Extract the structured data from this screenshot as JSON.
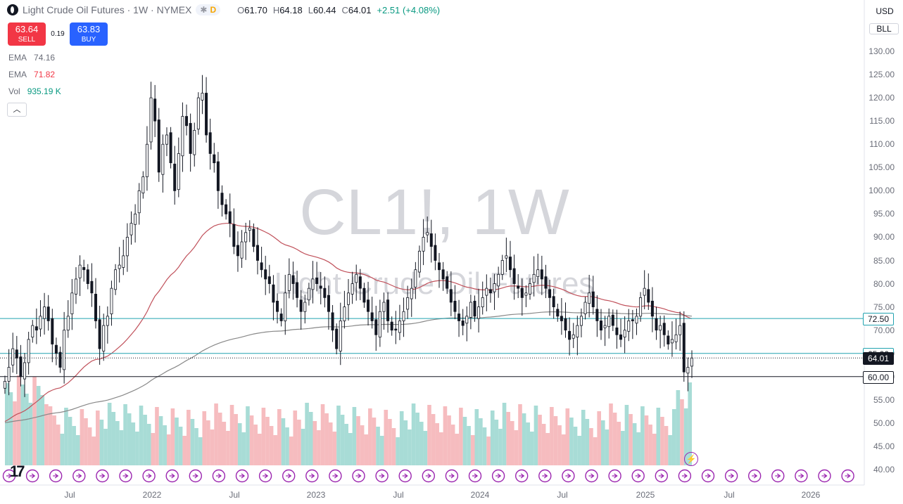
{
  "header": {
    "title": "Light Crude Oil Futures · 1W · NYMEX",
    "flag_d": "D",
    "ohlc": {
      "o_label": "O",
      "o": "61.70",
      "h_label": "H",
      "h": "64.18",
      "l_label": "L",
      "l": "60.44",
      "c_label": "C",
      "c": "64.01",
      "change": "+2.51 (+4.08%)"
    }
  },
  "trade": {
    "sell_price": "63.64",
    "sell_label": "SELL",
    "spread": "0.19",
    "buy_price": "63.83",
    "buy_label": "BUY"
  },
  "indicators": [
    {
      "name": "EMA",
      "value": "74.16",
      "color": "#6a6d78"
    },
    {
      "name": "EMA",
      "value": "71.82",
      "color": "#f23645"
    },
    {
      "name": "Vol",
      "value": "935.19 K",
      "color": "#089981"
    }
  ],
  "currency": "USD",
  "unit": "BLL",
  "watermark": {
    "symbol": "CL1!, 1W",
    "name": "Light Crude Oil Futures"
  },
  "colors": {
    "up": "#089981",
    "down": "#f23645",
    "hline": "#22a3b0",
    "ema_slow": "#888888",
    "ema_fast": "#c0505a",
    "vol_up": "#9fd8d2",
    "vol_down": "#f5b5b8",
    "event": "#9c27b0"
  },
  "chart_data": {
    "type": "candlestick",
    "interval": "1W",
    "x_axis_labels": [
      "Jul",
      "2022",
      "Jul",
      "2023",
      "Jul",
      "2024",
      "Jul",
      "2025",
      "Jul",
      "2026"
    ],
    "y_range": [
      40,
      130
    ],
    "y_ticks": [
      "130.00",
      "125.00",
      "120.00",
      "115.00",
      "110.00",
      "105.00",
      "100.00",
      "95.00",
      "90.00",
      "85.00",
      "80.00",
      "75.00",
      "70.00",
      "65.00",
      "60.00",
      "55.00",
      "50.00",
      "45.00",
      "40.00"
    ],
    "horizontal_lines": [
      72.5,
      65.0,
      60.0
    ],
    "price_tags": [
      {
        "label": "72.50",
        "value": 72.5,
        "bg": "#ffffff",
        "fg": "#131722",
        "border": "#22a3b0"
      },
      {
        "label": "65.00",
        "value": 65.0,
        "bg": "#ffffff",
        "fg": "#131722",
        "border": "#22a3b0"
      },
      {
        "label": "64.01",
        "value": 64.01,
        "bg": "#131722",
        "fg": "#ffffff",
        "border": "#131722"
      },
      {
        "label": "60.00",
        "value": 60.0,
        "bg": "#ffffff",
        "fg": "#131722",
        "border": "#131722"
      }
    ],
    "last_price": 64.01,
    "closes": [
      59,
      62,
      66,
      64,
      60,
      63,
      68,
      71,
      70,
      73,
      75,
      72,
      67,
      65,
      62,
      70,
      73,
      78,
      81,
      84,
      83,
      80,
      78,
      72,
      66,
      71,
      73,
      79,
      83,
      84,
      86,
      90,
      93,
      95,
      100,
      103,
      110,
      120,
      115,
      104,
      110,
      112,
      106,
      100,
      108,
      116,
      114,
      108,
      113,
      120,
      121,
      112,
      108,
      106,
      100,
      97,
      95,
      93,
      88,
      86,
      89,
      91,
      92,
      88,
      85,
      83,
      81,
      80,
      76,
      74,
      72,
      78,
      82,
      80,
      77,
      74,
      76,
      79,
      81,
      80,
      79,
      77,
      74,
      70,
      66,
      72,
      75,
      78,
      80,
      82,
      79,
      76,
      74,
      72,
      69,
      74,
      76,
      72,
      70,
      70,
      72,
      74,
      77,
      79,
      83,
      87,
      90,
      91,
      88,
      85,
      83,
      81,
      79,
      76,
      74,
      72,
      71,
      73,
      76,
      73,
      75,
      77,
      79,
      78,
      80,
      82,
      85,
      86,
      83,
      80,
      79,
      77,
      78,
      80,
      82,
      83,
      81,
      79,
      77,
      75,
      73,
      72,
      70,
      68,
      69,
      71,
      73,
      76,
      78,
      75,
      72,
      70,
      71,
      73,
      71,
      69,
      68,
      70,
      72,
      72,
      73,
      77,
      79,
      76,
      73,
      70,
      71,
      69,
      67,
      68,
      69,
      71,
      61,
      62,
      64
    ]
  },
  "timeline": {
    "event_count": 37
  }
}
